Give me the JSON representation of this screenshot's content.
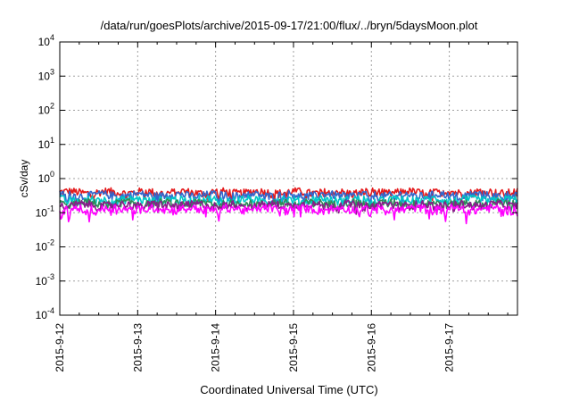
{
  "chart_data": {
    "type": "line",
    "title": "/data/run/goesPlots/archive/2015-09-17/21:00/flux/../bryn/5daysMoon.plot",
    "xlabel": "Coordinated Universal Time (UTC)",
    "ylabel": "cSv/day",
    "yscale": "log",
    "ylim": [
      0.0001,
      10000
    ],
    "yticks": [
      {
        "base": "10",
        "exp": "-4",
        "value": 0.0001
      },
      {
        "base": "10",
        "exp": "-3",
        "value": 0.001
      },
      {
        "base": "10",
        "exp": "-2",
        "value": 0.01
      },
      {
        "base": "10",
        "exp": "-1",
        "value": 0.1
      },
      {
        "base": "10",
        "exp": "0",
        "value": 1
      },
      {
        "base": "10",
        "exp": "1",
        "value": 10
      },
      {
        "base": "10",
        "exp": "2",
        "value": 100
      },
      {
        "base": "10",
        "exp": "3",
        "value": 1000
      },
      {
        "base": "10",
        "exp": "4",
        "value": 10000
      }
    ],
    "xlim": [
      "2015-09-12 00:00",
      "2015-09-17 21:00"
    ],
    "xticks": [
      "2015-9-12",
      "2015-9-13",
      "2015-9-14",
      "2015-9-15",
      "2015-9-16",
      "2015-9-17"
    ],
    "grid": true,
    "series": [
      {
        "color": "#e41a1c",
        "base": 0.4,
        "dips": [
          [
            0.45,
            0.3
          ],
          [
            2.04,
            0.24
          ],
          [
            3.98,
            0.28
          ],
          [
            4.72,
            0.3
          ]
        ]
      },
      {
        "color": "#3366cc",
        "base": 0.33,
        "dips": [
          [
            0.1,
            0.2
          ],
          [
            2.04,
            0.18
          ],
          [
            3.98,
            0.2
          ],
          [
            4.3,
            0.22
          ]
        ]
      },
      {
        "color": "#00c8c8",
        "base": 0.24,
        "dips": [
          [
            0.1,
            0.17
          ],
          [
            2.04,
            0.16
          ],
          [
            3.98,
            0.18
          ]
        ]
      },
      {
        "color": "#2e8b57",
        "base": 0.19,
        "dips": [
          [
            0.1,
            0.15
          ],
          [
            2.04,
            0.13
          ],
          [
            3.98,
            0.14
          ]
        ]
      },
      {
        "color": "#8b1a8b",
        "base": 0.17,
        "dips": [
          [
            0.1,
            0.13
          ],
          [
            2.04,
            0.12
          ],
          [
            3.98,
            0.12
          ]
        ]
      },
      {
        "color": "#ff00ff",
        "base": 0.13,
        "dips": [
          [
            0.02,
            0.045
          ],
          [
            0.12,
            0.05
          ],
          [
            0.3,
            0.09
          ],
          [
            0.38,
            0.07
          ],
          [
            2.04,
            0.05
          ],
          [
            3.98,
            0.06
          ],
          [
            4.22,
            0.09
          ],
          [
            4.95,
            0.05
          ],
          [
            5.22,
            0.06
          ]
        ]
      }
    ]
  }
}
